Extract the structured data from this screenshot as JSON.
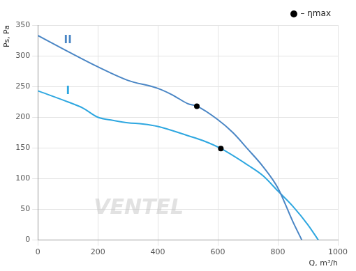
{
  "chart_data": {
    "type": "line",
    "x_label": "Q, m³/h",
    "y_label": "Ps, Pa",
    "xlim": [
      0,
      1000
    ],
    "xticks": [
      0,
      200,
      400,
      600,
      800,
      1000
    ],
    "ylim": [
      0,
      350
    ],
    "yticks": [
      0,
      50,
      100,
      150,
      200,
      250,
      300,
      350
    ],
    "grid": true,
    "legend": "top-right",
    "annotations": [
      "VENTEL"
    ],
    "series": [
      {
        "name": "II",
        "color": "#4a86c5",
        "x": [
          0,
          100,
          200,
          300,
          400,
          450,
          500,
          530,
          600,
          650,
          700,
          750,
          800,
          850,
          880
        ],
        "values": [
          333,
          307,
          282,
          260,
          247,
          236,
          222,
          218,
          196,
          175,
          148,
          120,
          85,
          30,
          0
        ]
      },
      {
        "name": "I",
        "color": "#2ea7e0",
        "x": [
          0,
          100,
          150,
          200,
          250,
          300,
          350,
          400,
          500,
          550,
          610,
          700,
          750,
          800,
          850,
          900,
          935
        ],
        "values": [
          243,
          225,
          215,
          200,
          195,
          191,
          189,
          185,
          170,
          162,
          149,
          122,
          105,
          80,
          55,
          25,
          0
        ]
      },
      {
        "name": "– ηmax",
        "type": "scatter",
        "marker": "circle",
        "color": "#000000",
        "x": [
          530,
          610
        ],
        "values": [
          218,
          149
        ]
      }
    ]
  }
}
